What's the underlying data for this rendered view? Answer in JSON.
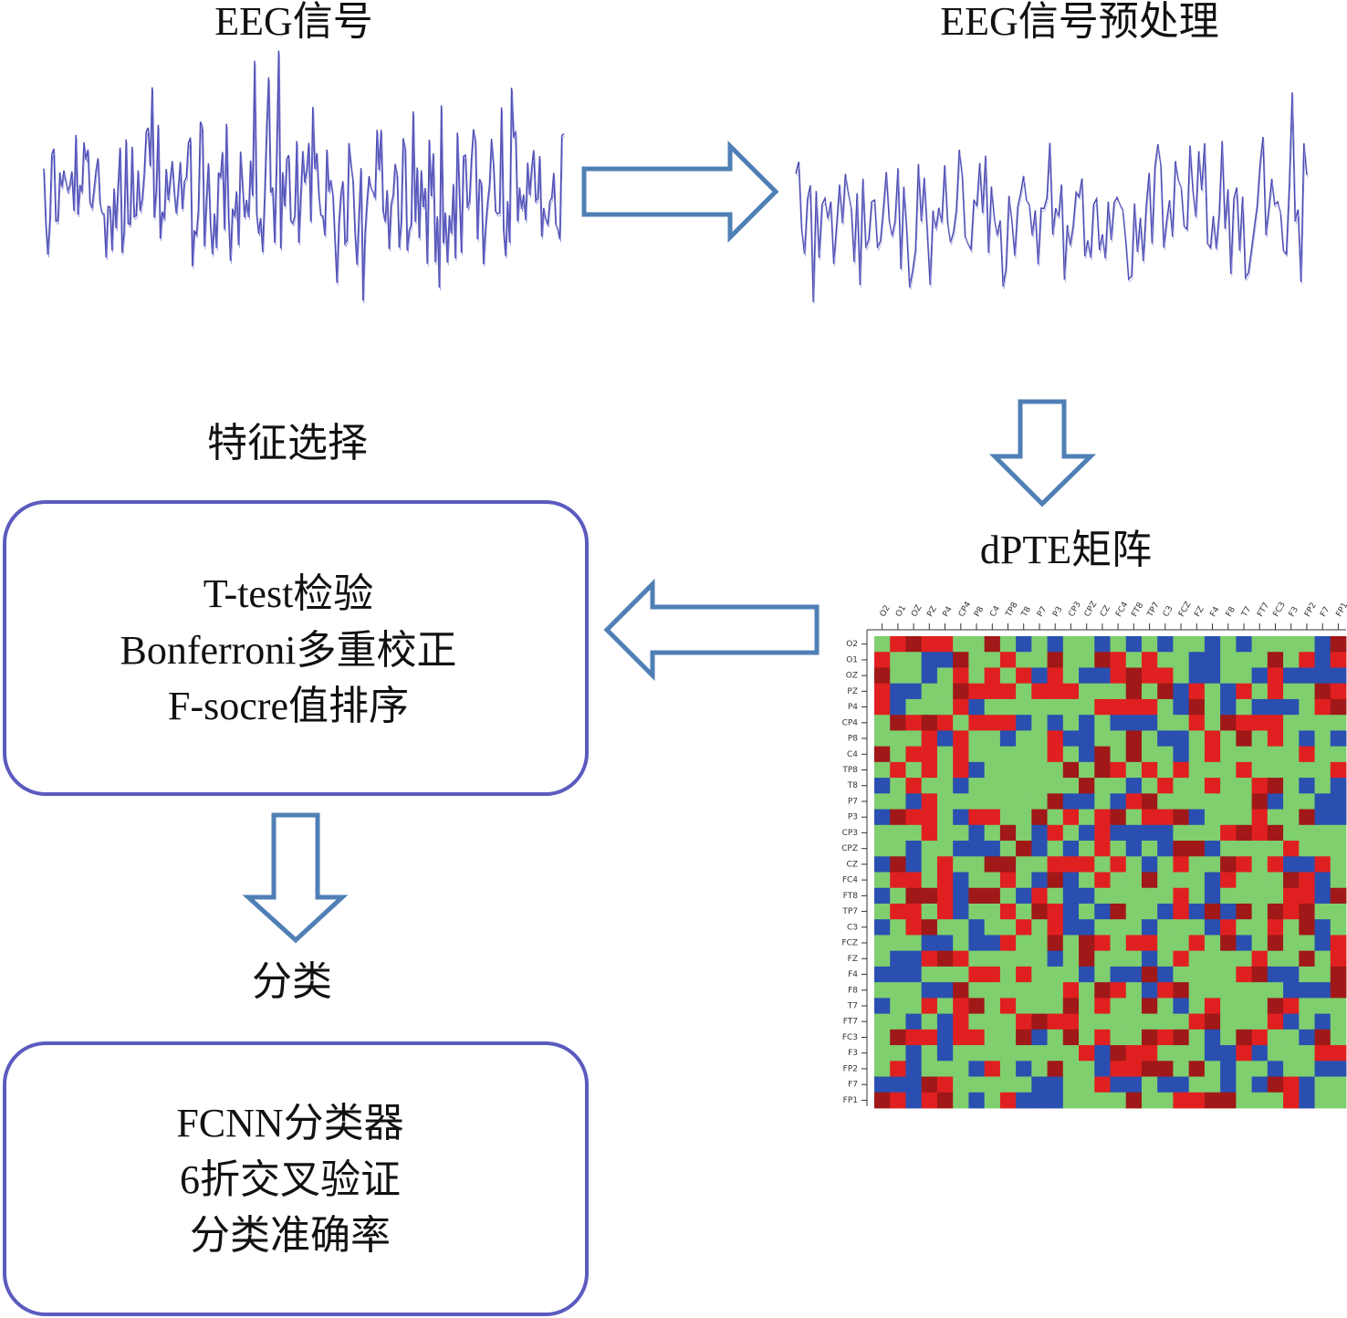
{
  "titles": {
    "eeg": "EEG信号",
    "preprocess": "EEG信号预处理",
    "matrix": "dPTE矩阵",
    "feature": "特征选择",
    "classify": "分类"
  },
  "feature_box": {
    "lines": [
      "T-test检验",
      "Bonferroni多重校正",
      "F-socre值排序"
    ]
  },
  "classify_box": {
    "lines": [
      "FCNN分类器",
      "6折交叉验证",
      "分类准确率"
    ]
  },
  "matrix": {
    "labels": [
      "O2",
      "O1",
      "OZ",
      "PZ",
      "P4",
      "CP4",
      "P8",
      "C4",
      "TP8",
      "T8",
      "P7",
      "P3",
      "CP3",
      "CPZ",
      "CZ",
      "FC4",
      "FT8",
      "TP7",
      "C3",
      "FCZ",
      "FZ",
      "F4",
      "F8",
      "T7",
      "FT7",
      "FC3",
      "F3",
      "FP2",
      "F7",
      "FP1"
    ]
  }
}
